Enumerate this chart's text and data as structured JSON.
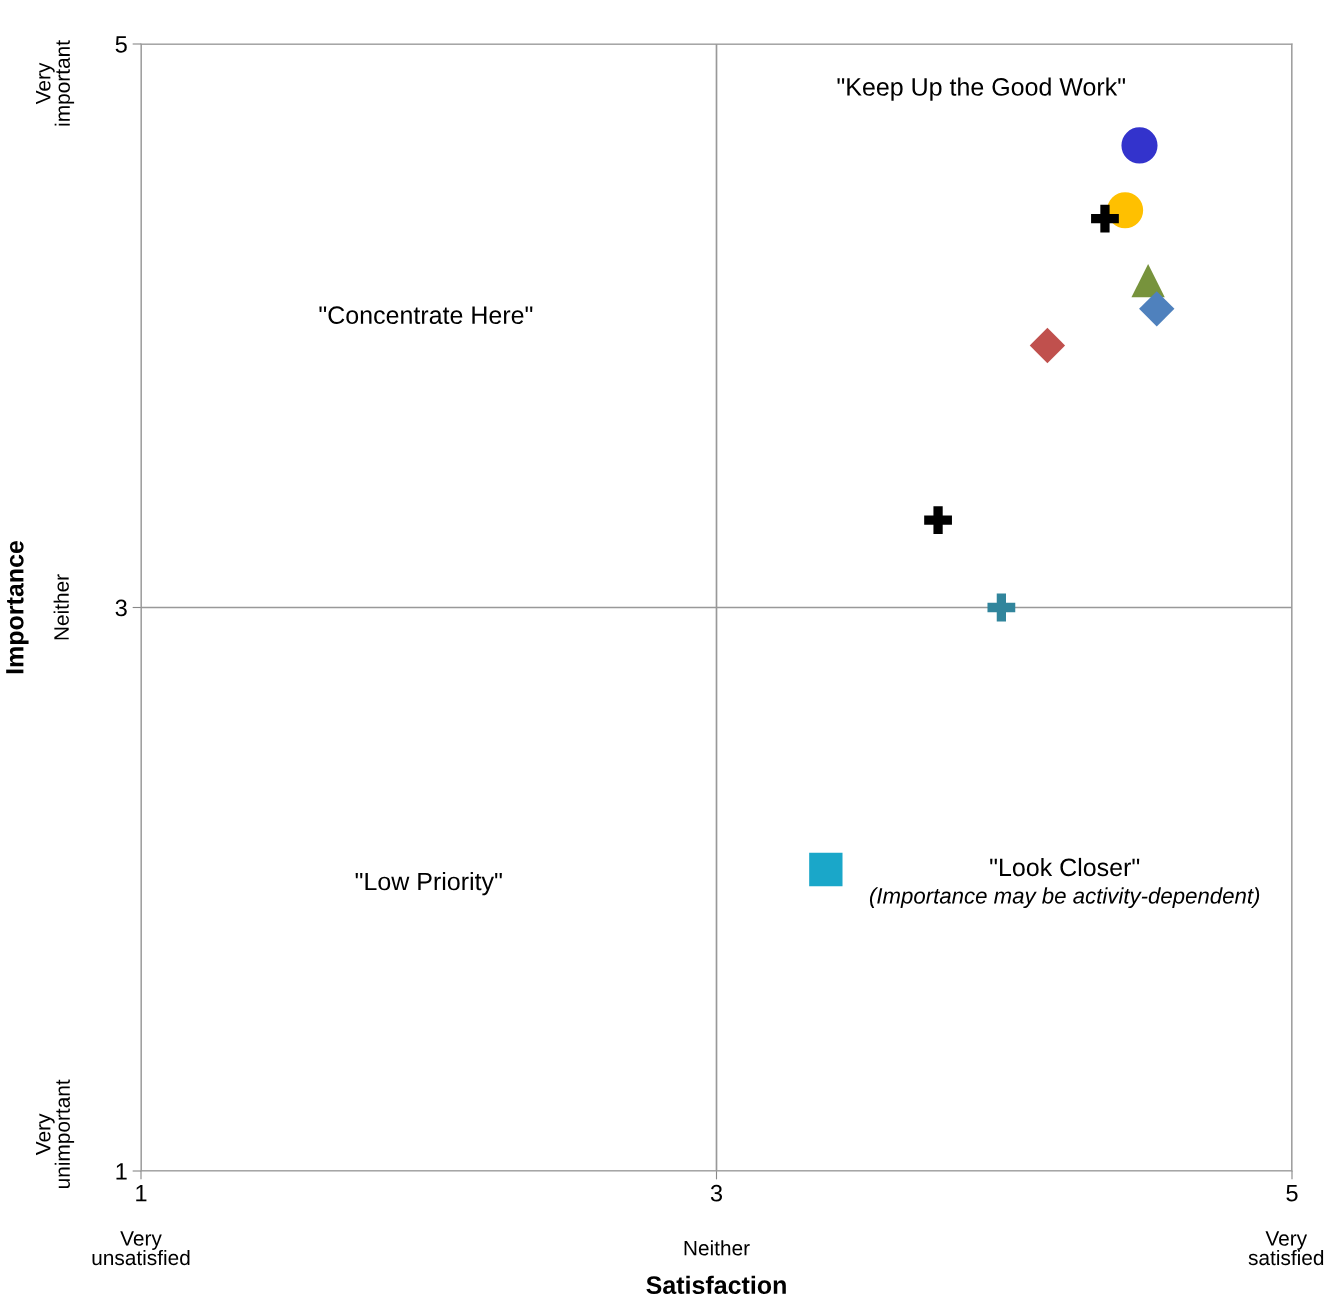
{
  "chart_data": {
    "type": "scatter",
    "xlabel": "Satisfaction",
    "ylabel": "Importance",
    "xlim": [
      1,
      5
    ],
    "ylim": [
      1,
      5
    ],
    "xticks": [
      1,
      3,
      5
    ],
    "yticks": [
      1,
      3,
      5
    ],
    "grid": true,
    "legend": false,
    "series": [
      {
        "x": [
          4.47
        ],
        "values": [
          4.64
        ],
        "color": "#3333cc",
        "marker": "circle"
      },
      {
        "x": [
          4.42
        ],
        "values": [
          4.41
        ],
        "color": "#ffc000",
        "marker": "circle"
      },
      {
        "x": [
          4.35
        ],
        "values": [
          4.38
        ],
        "color": "#000000",
        "marker": "cross"
      },
      {
        "x": [
          4.5
        ],
        "values": [
          4.16
        ],
        "color": "#77933c",
        "marker": "triangle"
      },
      {
        "x": [
          4.53
        ],
        "values": [
          4.06
        ],
        "color": "#4f81bd",
        "marker": "diamond"
      },
      {
        "x": [
          4.15
        ],
        "values": [
          3.93
        ],
        "color": "#c0504d",
        "marker": "diamond"
      },
      {
        "x": [
          3.77
        ],
        "values": [
          3.31
        ],
        "color": "#000000",
        "marker": "cross"
      },
      {
        "x": [
          3.99
        ],
        "values": [
          3.0
        ],
        "color": "#31859c",
        "marker": "cross"
      },
      {
        "x": [
          3.38
        ],
        "values": [
          2.07
        ],
        "color": "#1aa7c9",
        "marker": "square"
      }
    ],
    "annotations": [
      "\"Keep Up the Good Work\"",
      "\"Concentrate Here\"",
      "\"Low Priority\"",
      "\"Look Closer\"",
      "(Importance may be activity-dependent)",
      "Very\nunsatisfied",
      "Neither",
      "Very\nsatisfied",
      "Very\nimportant",
      "Neither",
      "Very\nunimportant"
    ]
  }
}
